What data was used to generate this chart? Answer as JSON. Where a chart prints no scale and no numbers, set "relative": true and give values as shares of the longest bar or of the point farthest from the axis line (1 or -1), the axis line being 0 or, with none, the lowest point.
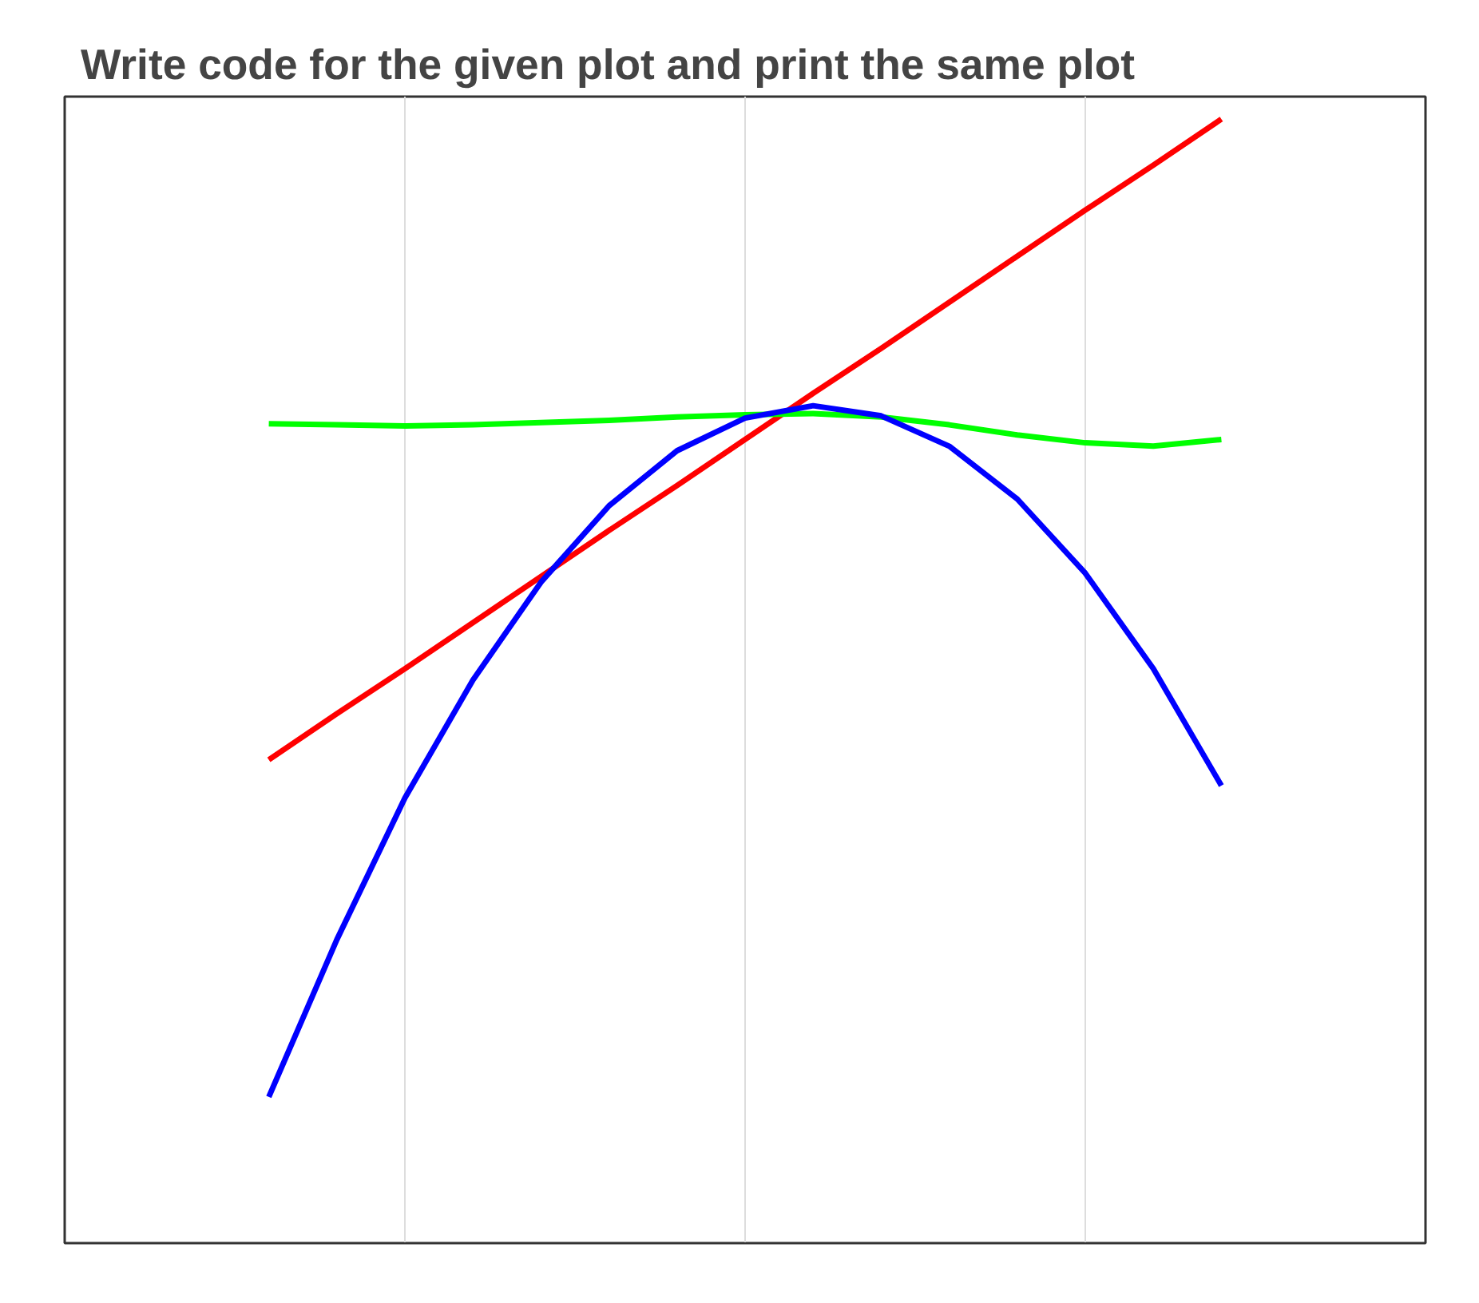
{
  "chart_data": {
    "type": "line",
    "title": "Write code for the given plot and print the same plot",
    "relative": true,
    "grid": "x",
    "categories": [
      null,
      null,
      null,
      null,
      null,
      null,
      null,
      null,
      null,
      null,
      null,
      null,
      null,
      null,
      null
    ],
    "series": [
      {
        "color": "#ff0000",
        "values": [
          0.43,
          0.471,
          0.511,
          0.552,
          0.593,
          0.634,
          0.674,
          0.715,
          0.756,
          0.796,
          0.837,
          0.878,
          0.919,
          0.959,
          1.0
        ]
      },
      {
        "color": "#00ff00",
        "values": [
          0.729,
          0.728,
          0.727,
          0.728,
          0.73,
          0.732,
          0.735,
          0.737,
          0.738,
          0.735,
          0.728,
          0.719,
          0.712,
          0.709,
          0.715
        ]
      },
      {
        "color": "#0000ff",
        "values": [
          0.13,
          0.27,
          0.396,
          0.501,
          0.588,
          0.656,
          0.705,
          0.734,
          0.745,
          0.736,
          0.709,
          0.662,
          0.596,
          0.511,
          0.407
        ]
      }
    ]
  }
}
